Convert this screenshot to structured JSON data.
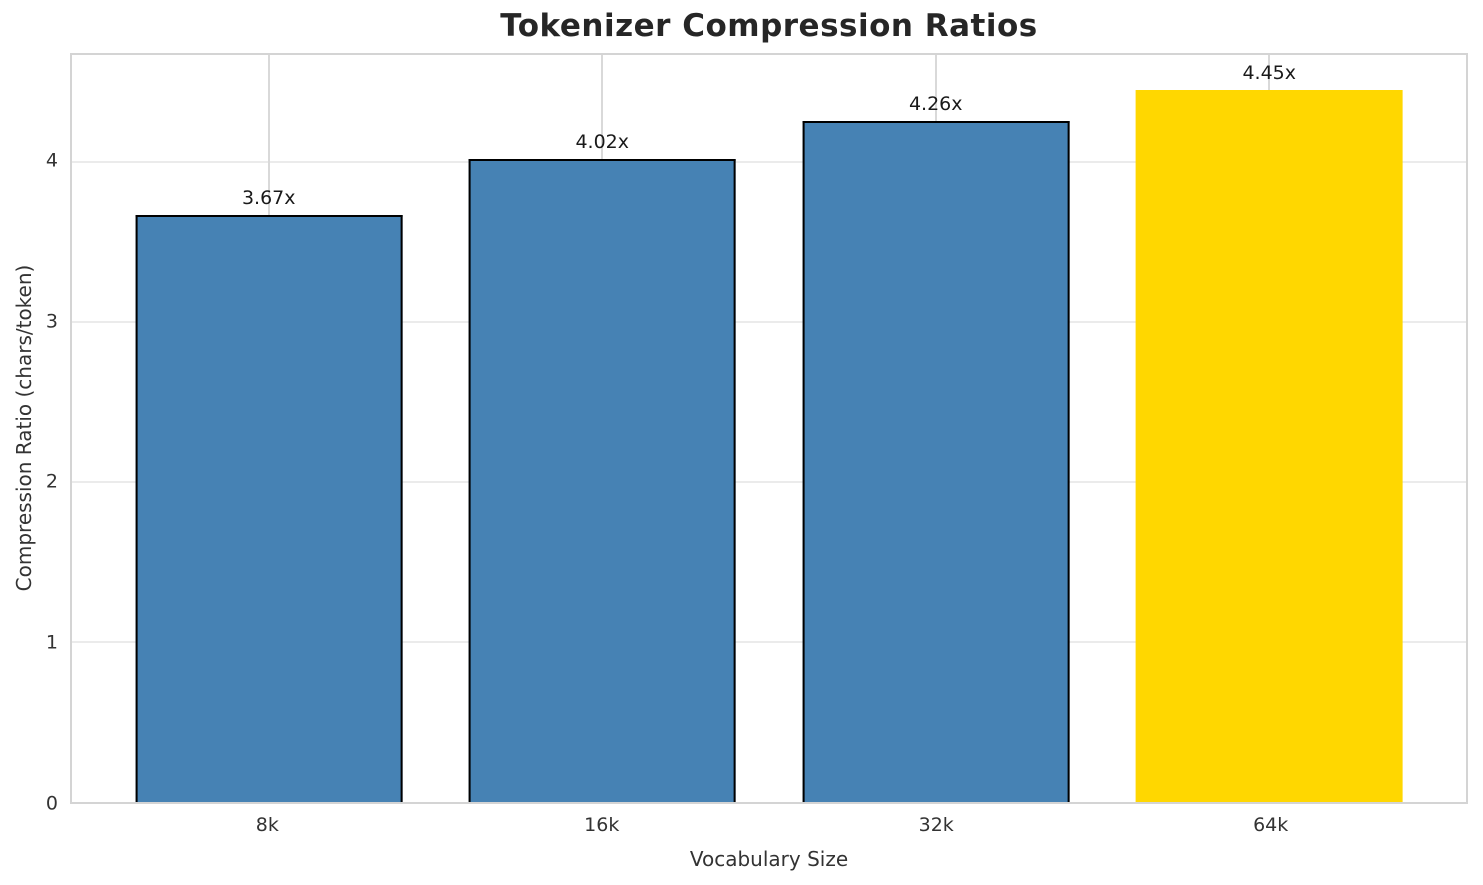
{
  "chart_data": {
    "type": "bar",
    "title": "Tokenizer Compression Ratios",
    "xlabel": "Vocabulary Size",
    "ylabel": "Compression Ratio (chars/token)",
    "categories": [
      "8k",
      "16k",
      "32k",
      "64k"
    ],
    "values": [
      3.67,
      4.02,
      4.26,
      4.45
    ],
    "bar_labels": [
      "3.67x",
      "4.02x",
      "4.26x",
      "4.45x"
    ],
    "ylim": [
      0,
      4.67
    ],
    "yticks": [
      0,
      1,
      2,
      3,
      4
    ],
    "grid": "both",
    "legend_position": "none",
    "bar_colors": [
      "#4682B4",
      "#4682B4",
      "#4682B4",
      "#FFD700"
    ],
    "bar_edge_colors": [
      "#000000",
      "#000000",
      "#000000",
      "transparent"
    ],
    "highlighted_category": "64k"
  },
  "colors": {
    "figure_background": "#FFFFFF",
    "plot_background": "#FFFFFF",
    "bar_blue": "#4682B4",
    "bar_gold": "#FFD700",
    "bar_edge": "#000000",
    "grid_horizontal": "#EBEBEB",
    "grid_vertical": "#D9D9D9",
    "spine": "#D4D4D4",
    "title_text": "#262626",
    "tick_text": "#333333",
    "axis_label_text": "#333333",
    "value_label_text": "#1A1A1A"
  }
}
